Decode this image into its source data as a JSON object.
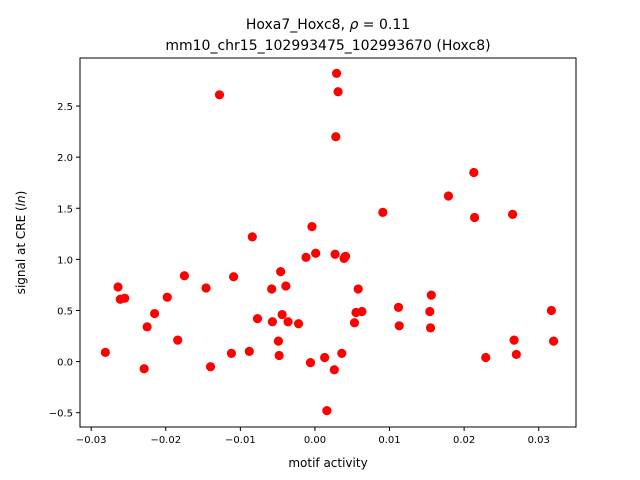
{
  "chart_data": {
    "type": "scatter",
    "title_line1_prefix": "Hoxa7_Hoxc8, ",
    "title_rho_symbol": "ρ",
    "title_rho_value": " = 0.11",
    "title_line2": "mm10_chr15_102993475_102993670 (Hoxc8)",
    "xlabel": "motif activity",
    "ylabel_prefix": "signal at CRE (",
    "ylabel_italic": "ln",
    "ylabel_suffix": ")",
    "xlim": [
      -0.0315,
      0.035
    ],
    "ylim": [
      -0.64,
      2.97
    ],
    "xticks": [
      -0.03,
      -0.02,
      -0.01,
      0.0,
      0.01,
      0.02,
      0.03
    ],
    "xtick_labels": [
      "−0.03",
      "−0.02",
      "−0.01",
      "0.00",
      "0.01",
      "0.02",
      "0.03"
    ],
    "yticks": [
      -0.5,
      0.0,
      0.5,
      1.0,
      1.5,
      2.0,
      2.5
    ],
    "ytick_labels": [
      "−0.5",
      "0.0",
      "0.5",
      "1.0",
      "1.5",
      "2.0",
      "2.5"
    ],
    "marker_color": "#ff0000",
    "grid": false,
    "points": [
      {
        "x": -0.0281,
        "y": 0.09
      },
      {
        "x": -0.0264,
        "y": 0.73
      },
      {
        "x": -0.0261,
        "y": 0.61
      },
      {
        "x": -0.0255,
        "y": 0.62
      },
      {
        "x": -0.0229,
        "y": -0.07
      },
      {
        "x": -0.0225,
        "y": 0.34
      },
      {
        "x": -0.0215,
        "y": 0.47
      },
      {
        "x": -0.0198,
        "y": 0.63
      },
      {
        "x": -0.0184,
        "y": 0.21
      },
      {
        "x": -0.0175,
        "y": 0.84
      },
      {
        "x": -0.0146,
        "y": 0.72
      },
      {
        "x": -0.014,
        "y": -0.05
      },
      {
        "x": -0.0128,
        "y": 2.61
      },
      {
        "x": -0.0112,
        "y": 0.08
      },
      {
        "x": -0.0109,
        "y": 0.83
      },
      {
        "x": -0.0088,
        "y": 0.1
      },
      {
        "x": -0.0084,
        "y": 1.22
      },
      {
        "x": -0.0077,
        "y": 0.42
      },
      {
        "x": -0.0058,
        "y": 0.71
      },
      {
        "x": -0.0057,
        "y": 0.39
      },
      {
        "x": -0.0049,
        "y": 0.2
      },
      {
        "x": -0.0048,
        "y": 0.06
      },
      {
        "x": -0.0046,
        "y": 0.88
      },
      {
        "x": -0.0044,
        "y": 0.46
      },
      {
        "x": -0.0039,
        "y": 0.74
      },
      {
        "x": -0.0036,
        "y": 0.39
      },
      {
        "x": -0.0022,
        "y": 0.37
      },
      {
        "x": -0.0012,
        "y": 1.02
      },
      {
        "x": -0.0006,
        "y": -0.01
      },
      {
        "x": -0.0004,
        "y": 1.32
      },
      {
        "x": 0.0001,
        "y": 1.06
      },
      {
        "x": 0.0013,
        "y": 0.04
      },
      {
        "x": 0.0016,
        "y": -0.48
      },
      {
        "x": 0.0026,
        "y": -0.08
      },
      {
        "x": 0.0027,
        "y": 1.05
      },
      {
        "x": 0.0028,
        "y": 2.2
      },
      {
        "x": 0.0029,
        "y": 2.82
      },
      {
        "x": 0.0031,
        "y": 2.64
      },
      {
        "x": 0.0036,
        "y": 0.08
      },
      {
        "x": 0.0039,
        "y": 1.01
      },
      {
        "x": 0.0041,
        "y": 1.03
      },
      {
        "x": 0.0053,
        "y": 0.38
      },
      {
        "x": 0.0055,
        "y": 0.48
      },
      {
        "x": 0.0058,
        "y": 0.71
      },
      {
        "x": 0.0063,
        "y": 0.49
      },
      {
        "x": 0.0091,
        "y": 1.46
      },
      {
        "x": 0.0112,
        "y": 0.53
      },
      {
        "x": 0.0113,
        "y": 0.35
      },
      {
        "x": 0.0154,
        "y": 0.49
      },
      {
        "x": 0.0155,
        "y": 0.33
      },
      {
        "x": 0.0156,
        "y": 0.65
      },
      {
        "x": 0.0179,
        "y": 1.62
      },
      {
        "x": 0.0213,
        "y": 1.85
      },
      {
        "x": 0.0214,
        "y": 1.41
      },
      {
        "x": 0.0229,
        "y": 0.04
      },
      {
        "x": 0.0265,
        "y": 1.44
      },
      {
        "x": 0.0267,
        "y": 0.21
      },
      {
        "x": 0.027,
        "y": 0.07
      },
      {
        "x": 0.0317,
        "y": 0.5
      },
      {
        "x": 0.032,
        "y": 0.2
      }
    ]
  }
}
